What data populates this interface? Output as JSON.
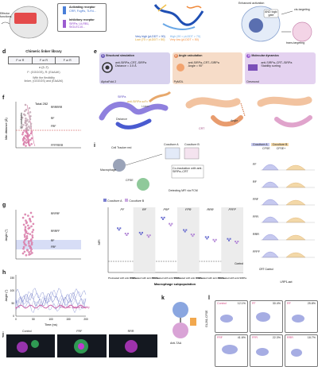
{
  "panel_letters": {
    "d": "d",
    "e": "e",
    "f": "f",
    "g": "g",
    "h": "h",
    "i": "i",
    "j": "j",
    "k": "k",
    "l": "l"
  },
  "top": {
    "effector_label": "Effector functions",
    "activating_title": "Activating receptor",
    "activating_examples": "CRR, FcgRs, TLR4...",
    "inhibitory_title": "Inhibitory receptor",
    "inhibitory_examples": "SIRPa, LILRB1, SIGLEC10...",
    "and_gate": "AND logic gate",
    "enhanced_label": "Enhanced activation",
    "cis_targeting": "cis-targeting",
    "trans_targeting": "trans-targeting",
    "affinity_legend": [
      {
        "label": "Very high (pLDDT > 90)",
        "color": "#1f4fb4"
      },
      {
        "label": "High (90 > pLDDT > 70)",
        "color": "#6aa8e6"
      },
      {
        "label": "Low (70 > pLDDT > 50)",
        "color": "#f2c14e"
      },
      {
        "label": "Very low (pLDDT < 50)",
        "color": "#f08a3a"
      }
    ]
  },
  "d": {
    "title": "Chimeric linker library",
    "segments": [
      "F or R",
      "F or R",
      "F or R"
    ],
    "repeat": "n (2–7)",
    "note1": "F: (GGGGS), R: (EAAAK)",
    "note2": "With the flexibility",
    "note3": "linker, (GGGGS) and (EAAAK)"
  },
  "e": {
    "steps": [
      {
        "num": "1",
        "title": "Structural simulation",
        "body1": "anti-SIRPa–CRT–SIRPa",
        "body2": "Distance = 3.5 Å",
        "tool": "AlphaFold 2",
        "color": "#d8d2ee"
      },
      {
        "num": "2",
        "title": "Angle calculation",
        "body1": "anti-SIRPa–CRT–SIRPa",
        "body2": "Angle = 90°",
        "tool": "PyMOL",
        "color": "#f6dcc8"
      },
      {
        "num": "3",
        "title": "Molecular dynamics",
        "body1": "anti-SIRPa–CRT–SIRPa",
        "body2": "Stability sorting",
        "tool": "Desmond",
        "color": "#e4d2f0"
      }
    ],
    "labels": [
      "SIRPa",
      "anti-SIRPa scFv",
      "Linker",
      "Distance",
      "Angle",
      "CRT"
    ]
  },
  "f": {
    "ylabel": "Min distance (Å)",
    "total": "Total 252",
    "cutoff_label": "20 candidates",
    "annotations": [
      "RRRRRR",
      "RF",
      "FRF",
      "FFFFRRR"
    ]
  },
  "g": {
    "ylabel": "Angle (°)",
    "annotations": [
      "RRFRF",
      "RRRFF",
      "RF",
      "FRF"
    ]
  },
  "h": {
    "ylabel": "Angle (°)",
    "xlabel": "Time (ns)",
    "xticks": [
      "0",
      "50",
      "100",
      "150",
      "200"
    ],
    "yticks": [
      "0",
      "50",
      "100",
      "150"
    ],
    "legend": "FRF with optimal stability"
  },
  "i": {
    "schematic": [
      "Cell Tracker red",
      "Macrophage",
      "CFSE",
      "Coculture A",
      "Coculture B",
      "Co-incubation with anti-SIRPa–CRT",
      "Detecting MFI via FCM"
    ],
    "legend": [
      "Coculture A",
      "Coculture B"
    ],
    "ylabel": "MFI",
    "xlabel": "Macrophage subpopulation",
    "groups": [
      "FF",
      "RF",
      "FRF",
      "FFR",
      "RRR",
      "FFFF"
    ],
    "cond": [
      "CFSE",
      "CFSE+",
      "CFSE",
      "CFSE+"
    ],
    "sub": [
      "Pretreated with anti-SIRPa",
      "Pretreated with anti-SIRPa",
      "Pretreated with anti-SIRPa",
      "Pretreated with anti-SIRPa",
      "Pretreated with anti-SIRPa",
      "Pretreated with anti-SIRPa"
    ],
    "control": "Control",
    "hist_title": "Coculture A",
    "hist_title2": "Coculture B",
    "hist_rows": [
      "FF",
      "RF",
      "FRF",
      "FFR",
      "RRR",
      "FFFF"
    ],
    "hist_cols": [
      "CFSE",
      "CFSE+"
    ],
    "hist_xlabel": "LRP1-act",
    "hist_control": "CRT Control"
  },
  "j": {
    "labels": [
      "Control",
      "FRF",
      "RRR"
    ]
  },
  "k": {
    "label": "Anti-TAA"
  },
  "l": {
    "ylabel": "GL261-CFSE",
    "cells": [
      {
        "name": "Control",
        "pct": "12.1%"
      },
      {
        "name": "FF",
        "pct": "30.4%"
      },
      {
        "name": "RF",
        "pct": "25.8%"
      },
      {
        "name": "FRF",
        "pct": "41.6%"
      },
      {
        "name": "FFR",
        "pct": "22.3%"
      },
      {
        "name": "RRR",
        "pct": "18.7%"
      }
    ]
  },
  "chart_data": [
    {
      "type": "scatter",
      "title": "",
      "ylabel": "Min distance (Å)",
      "values": []
    },
    {
      "type": "bar",
      "ylabel": "MFI",
      "categories": [
        "FF",
        "RF",
        "FRF",
        "FFR",
        "RRR",
        "FFFF"
      ],
      "series": [
        {
          "name": "Coculture A",
          "values": [
            50,
            45,
            62,
            48,
            40,
            38
          ]
        },
        {
          "name": "Coculture B",
          "values": [
            44,
            42,
            55,
            43,
            37,
            35
          ]
        }
      ]
    }
  ]
}
